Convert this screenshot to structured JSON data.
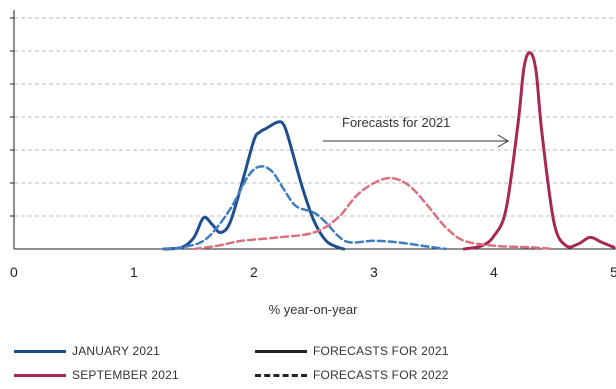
{
  "chart_data": {
    "type": "line",
    "title": "",
    "xlabel": "% year-on-year",
    "ylabel": "",
    "xlim": [
      0,
      5
    ],
    "ylim": [
      0,
      7
    ],
    "x_ticks": [
      "0",
      "1",
      "2",
      "3",
      "4",
      "5"
    ],
    "grid": "horizontal dashed",
    "annotation": {
      "text": "Forecasts for 2021"
    },
    "colors": {
      "january": "#1f4e8c",
      "january_2022": "#3f7cc0",
      "september": "#a8294f",
      "september_2022": "#d9707f"
    },
    "series": [
      {
        "name": "JANUARY 2021",
        "forecast_for": "2021",
        "style": "solid",
        "color": "#1f4e8c",
        "points": [
          [
            1.25,
            0
          ],
          [
            1.4,
            0.05
          ],
          [
            1.5,
            0.35
          ],
          [
            1.58,
            0.95
          ],
          [
            1.65,
            0.75
          ],
          [
            1.72,
            0.5
          ],
          [
            1.8,
            0.8
          ],
          [
            1.9,
            2.0
          ],
          [
            2.0,
            3.3
          ],
          [
            2.05,
            3.55
          ],
          [
            2.1,
            3.65
          ],
          [
            2.2,
            3.85
          ],
          [
            2.25,
            3.75
          ],
          [
            2.3,
            3.2
          ],
          [
            2.4,
            1.9
          ],
          [
            2.5,
            0.85
          ],
          [
            2.6,
            0.25
          ],
          [
            2.7,
            0.05
          ],
          [
            2.75,
            0
          ]
        ]
      },
      {
        "name": "JANUARY 2021",
        "forecast_for": "2022",
        "style": "dashed",
        "color": "#3f7cc0",
        "points": [
          [
            1.25,
            0
          ],
          [
            1.4,
            0.05
          ],
          [
            1.6,
            0.3
          ],
          [
            1.8,
            1.2
          ],
          [
            1.95,
            2.2
          ],
          [
            2.05,
            2.5
          ],
          [
            2.15,
            2.35
          ],
          [
            2.25,
            1.8
          ],
          [
            2.35,
            1.3
          ],
          [
            2.5,
            1.1
          ],
          [
            2.6,
            0.8
          ],
          [
            2.7,
            0.4
          ],
          [
            2.8,
            0.2
          ],
          [
            3.0,
            0.25
          ],
          [
            3.2,
            0.2
          ],
          [
            3.4,
            0.1
          ],
          [
            3.6,
            0
          ]
        ]
      },
      {
        "name": "SEPTEMBER 2021",
        "forecast_for": "2021",
        "style": "solid",
        "color": "#a8294f",
        "points": [
          [
            3.75,
            0
          ],
          [
            3.9,
            0.1
          ],
          [
            4.0,
            0.4
          ],
          [
            4.1,
            1.2
          ],
          [
            4.2,
            3.8
          ],
          [
            4.25,
            5.5
          ],
          [
            4.3,
            5.95
          ],
          [
            4.35,
            5.4
          ],
          [
            4.4,
            3.5
          ],
          [
            4.5,
            0.8
          ],
          [
            4.6,
            0.1
          ],
          [
            4.7,
            0.15
          ],
          [
            4.8,
            0.35
          ],
          [
            4.9,
            0.2
          ],
          [
            5.0,
            0.05
          ]
        ]
      },
      {
        "name": "SEPTEMBER 2021",
        "forecast_for": "2022",
        "style": "dashed",
        "color": "#d9707f",
        "points": [
          [
            1.5,
            0
          ],
          [
            1.7,
            0.1
          ],
          [
            1.9,
            0.25
          ],
          [
            2.2,
            0.35
          ],
          [
            2.5,
            0.5
          ],
          [
            2.7,
            0.95
          ],
          [
            2.85,
            1.6
          ],
          [
            3.0,
            2.0
          ],
          [
            3.15,
            2.15
          ],
          [
            3.3,
            1.9
          ],
          [
            3.45,
            1.3
          ],
          [
            3.6,
            0.65
          ],
          [
            3.75,
            0.25
          ],
          [
            4.0,
            0.1
          ],
          [
            4.3,
            0.05
          ],
          [
            4.5,
            0
          ]
        ]
      }
    ]
  },
  "legend": {
    "january": "JANUARY 2021",
    "september": "SEPTEMBER 2021",
    "forecasts_2021": "FORECASTS FOR 2021",
    "forecasts_2022": "FORECASTS FOR 2022"
  }
}
